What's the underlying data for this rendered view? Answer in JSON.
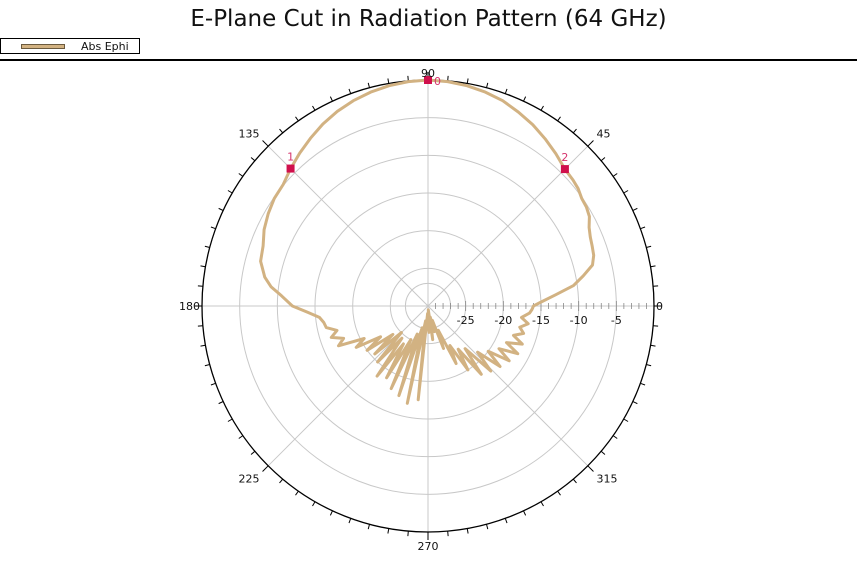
{
  "chart_data": {
    "type": "polar-line",
    "title": "E-Plane Cut in Radiation Pattern (64 GHz)",
    "legend": {
      "placement": "top-left",
      "entries": [
        "Abs Ephi"
      ]
    },
    "grid": true,
    "radial_unit": "dB",
    "radial_range": [
      -30,
      0
    ],
    "radial_ticks": [
      -25,
      -20,
      -15,
      -10,
      -5,
      0
    ],
    "radial_tick_labels": [
      "-25",
      "-20",
      "-15",
      "-10",
      "-5",
      "0"
    ],
    "angle_ticks": [
      0,
      45,
      90,
      135,
      180,
      225,
      270,
      315
    ],
    "angle_tick_labels": [
      "0",
      "45",
      "90",
      "135",
      "180",
      "225",
      "270",
      "315"
    ],
    "colors": {
      "trace": "#D2B282",
      "marker": "#D0104C",
      "grid": "#c8c8c8"
    },
    "series": [
      {
        "name": "Abs Ephi",
        "points": [
          [
            0,
            -16
          ],
          [
            2,
            -15
          ],
          [
            5,
            -13
          ],
          [
            8,
            -10.5
          ],
          [
            11,
            -9
          ],
          [
            14,
            -7.5
          ],
          [
            17,
            -7
          ],
          [
            20,
            -6.8
          ],
          [
            23,
            -6.6
          ],
          [
            26,
            -6.2
          ],
          [
            29,
            -5.5
          ],
          [
            32,
            -5.2
          ],
          [
            35,
            -5.1
          ],
          [
            38,
            -4.7
          ],
          [
            41,
            -4.5
          ],
          [
            45,
            -4.3
          ],
          [
            50,
            -3.6
          ],
          [
            55,
            -2.9
          ],
          [
            60,
            -2.2
          ],
          [
            65,
            -1.6
          ],
          [
            70,
            -1.0
          ],
          [
            75,
            -0.6
          ],
          [
            80,
            -0.3
          ],
          [
            85,
            -0.1
          ],
          [
            90,
            0
          ],
          [
            95,
            -0.1
          ],
          [
            100,
            -0.3
          ],
          [
            105,
            -0.6
          ],
          [
            110,
            -1.0
          ],
          [
            115,
            -1.5
          ],
          [
            120,
            -2.1
          ],
          [
            125,
            -2.8
          ],
          [
            130,
            -3.5
          ],
          [
            135,
            -4.2
          ],
          [
            140,
            -4.9
          ],
          [
            145,
            -5.1
          ],
          [
            150,
            -5.5
          ],
          [
            155,
            -6.0
          ],
          [
            160,
            -6.7
          ],
          [
            165,
            -7.0
          ],
          [
            170,
            -8.0
          ],
          [
            173,
            -9.0
          ],
          [
            176,
            -10.5
          ],
          [
            180,
            -12.0
          ],
          [
            183,
            -14.0
          ],
          [
            186,
            -15.5
          ],
          [
            189,
            -16.0
          ],
          [
            192,
            -16.2
          ],
          [
            195,
            -17.5
          ],
          [
            198,
            -16.5
          ],
          [
            201,
            -18.0
          ],
          [
            204,
            -17.0
          ],
          [
            207,
            -20.5
          ],
          [
            210,
            -19.0
          ],
          [
            213,
            -22.5
          ],
          [
            216,
            -20.0
          ],
          [
            219,
            -24.0
          ],
          [
            222,
            -20.5
          ],
          [
            225,
            -25.0
          ],
          [
            228,
            -20.0
          ],
          [
            231,
            -24.5
          ],
          [
            234,
            -18.5
          ],
          [
            237,
            -24.0
          ],
          [
            240,
            -19.0
          ],
          [
            243,
            -25.0
          ],
          [
            246,
            -18.0
          ],
          [
            249,
            -26.0
          ],
          [
            252,
            -17.5
          ],
          [
            255,
            -27.0
          ],
          [
            258,
            -16.8
          ],
          [
            261,
            -28.0
          ],
          [
            264,
            -17.5
          ],
          [
            267,
            -29.0
          ],
          [
            270,
            -28.0
          ],
          [
            272,
            -26.5
          ],
          [
            275,
            -29.5
          ],
          [
            278,
            -25.5
          ],
          [
            281,
            -28.5
          ],
          [
            284,
            -26.5
          ],
          [
            287,
            -28.0
          ],
          [
            290,
            -24.0
          ],
          [
            293,
            -26.5
          ],
          [
            296,
            -21.5
          ],
          [
            299,
            -24.0
          ],
          [
            302,
            -20.0
          ],
          [
            305,
            -23.0
          ],
          [
            308,
            -18.5
          ],
          [
            311,
            -22.5
          ],
          [
            314,
            -18.0
          ],
          [
            317,
            -21.0
          ],
          [
            320,
            -17.5
          ],
          [
            323,
            -20.0
          ],
          [
            326,
            -17.0
          ],
          [
            329,
            -19.0
          ],
          [
            332,
            -16.5
          ],
          [
            335,
            -18.5
          ],
          [
            338,
            -16.5
          ],
          [
            341,
            -18.0
          ],
          [
            344,
            -16.8
          ],
          [
            347,
            -17.5
          ],
          [
            350,
            -16.5
          ],
          [
            353,
            -17.5
          ],
          [
            356,
            -16.5
          ],
          [
            358,
            -16.2
          ]
        ]
      }
    ],
    "markers": [
      {
        "label": "0",
        "angle": 90,
        "value": 0
      },
      {
        "label": "1",
        "angle": 135,
        "value": -4.2
      },
      {
        "label": "2",
        "angle": 45,
        "value": -4.3
      }
    ]
  }
}
